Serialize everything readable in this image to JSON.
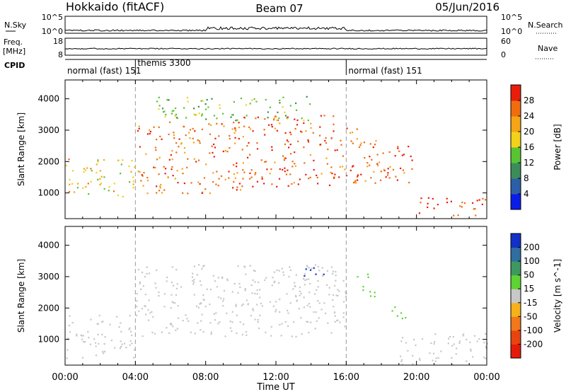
{
  "header": {
    "station": "Hokkaido (fitACF)",
    "beam": "Beam 07",
    "date": "05/Jun/2016"
  },
  "top_panels": {
    "nsky_label": "N.Sky",
    "nsearch_label": "N.Search",
    "freq_label_1": "Freq.",
    "freq_label_2": "[MHz]",
    "nave_label": "Nave",
    "cpid_label": "CPID",
    "nsky_ticks": [
      "10^5",
      "10^0"
    ],
    "nsearch_ticks": [
      "10^5",
      "10^0"
    ],
    "freq_ticks": [
      "18",
      "8"
    ],
    "nave_ticks": [
      "60",
      "0"
    ]
  },
  "cpid": [
    {
      "label": "normal (fast) 151",
      "start_hour": 0
    },
    {
      "label": "themis 3300",
      "start_hour": 4.0
    },
    {
      "label": "normal (fast) 151",
      "start_hour": 16.0
    }
  ],
  "chart_data": [
    {
      "type": "heatmap",
      "title": "",
      "xlabel": "Time UT",
      "ylabel": "Slant Range [km]",
      "x_ticks": [
        "00:00",
        "04:00",
        "08:00",
        "12:00",
        "16:00",
        "20:00",
        "00:00"
      ],
      "xlim_hours": [
        0,
        24
      ],
      "y_ticks": [
        1000,
        2000,
        3000,
        4000
      ],
      "ylim": [
        180,
        4600
      ],
      "colorbar": {
        "label": "Power [dB]",
        "ticks": [
          4,
          8,
          12,
          16,
          20,
          24,
          28
        ],
        "range": [
          0,
          32
        ],
        "colors": [
          "#0a1de8",
          "#2d5fa8",
          "#3c8c5a",
          "#58c433",
          "#f2d21a",
          "#f5a516",
          "#f06d0f",
          "#e81e0b"
        ]
      },
      "scatter_regions": [
        {
          "t0": 0.0,
          "t1": 4.0,
          "r0": 900,
          "r1": 2100,
          "value": 20
        },
        {
          "t0": 4.0,
          "t1": 10.0,
          "r0": 1000,
          "r1": 3300,
          "value": 26
        },
        {
          "t0": 10.0,
          "t1": 15.5,
          "r0": 1200,
          "r1": 3500,
          "value": 27
        },
        {
          "t0": 15.5,
          "t1": 17.0,
          "r0": 1300,
          "r1": 3100,
          "value": 26
        },
        {
          "t0": 17.0,
          "t1": 20.0,
          "r0": 1300,
          "r1": 2700,
          "value": 28
        },
        {
          "t0": 20.0,
          "t1": 24.0,
          "r0": 300,
          "r1": 900,
          "value": 30
        },
        {
          "t0": 5.0,
          "t1": 14.0,
          "r0": 3300,
          "r1": 4100,
          "value": 14
        }
      ]
    },
    {
      "type": "heatmap",
      "title": "",
      "xlabel": "Time UT",
      "ylabel": "Slant Range [km]",
      "x_ticks": [
        "00:00",
        "04:00",
        "08:00",
        "12:00",
        "16:00",
        "20:00",
        "00:00"
      ],
      "xlim_hours": [
        0,
        24
      ],
      "y_ticks": [
        1000,
        2000,
        3000,
        4000
      ],
      "ylim": [
        180,
        4600
      ],
      "colorbar": {
        "label": "Velocity [m s^-1]",
        "ticks": [
          200,
          100,
          50,
          15,
          -15,
          -50,
          -100,
          -200
        ],
        "colors": [
          "#1230c8",
          "#2f6e9e",
          "#3f9860",
          "#5ed333",
          "#c8c8c8",
          "#f5b21b",
          "#f2781a",
          "#e8440f",
          "#e61a0a"
        ]
      },
      "ground_scatter_color": "#c8c8c8",
      "scatter_regions": [
        {
          "t0": 0.0,
          "t1": 4.0,
          "r0": 400,
          "r1": 1800,
          "value": 0
        },
        {
          "t0": 4.0,
          "t1": 16.0,
          "r0": 1100,
          "r1": 3400,
          "value": 0
        },
        {
          "t0": 13.5,
          "t1": 14.8,
          "r0": 3000,
          "r1": 3400,
          "value": 220
        },
        {
          "t0": 16.6,
          "t1": 17.6,
          "r0": 2300,
          "r1": 3100,
          "value": 25
        },
        {
          "t0": 18.5,
          "t1": 19.5,
          "r0": 1600,
          "r1": 2100,
          "value": 25
        },
        {
          "t0": 19.0,
          "t1": 24.0,
          "r0": 200,
          "r1": 1200,
          "value": 0
        }
      ]
    }
  ]
}
